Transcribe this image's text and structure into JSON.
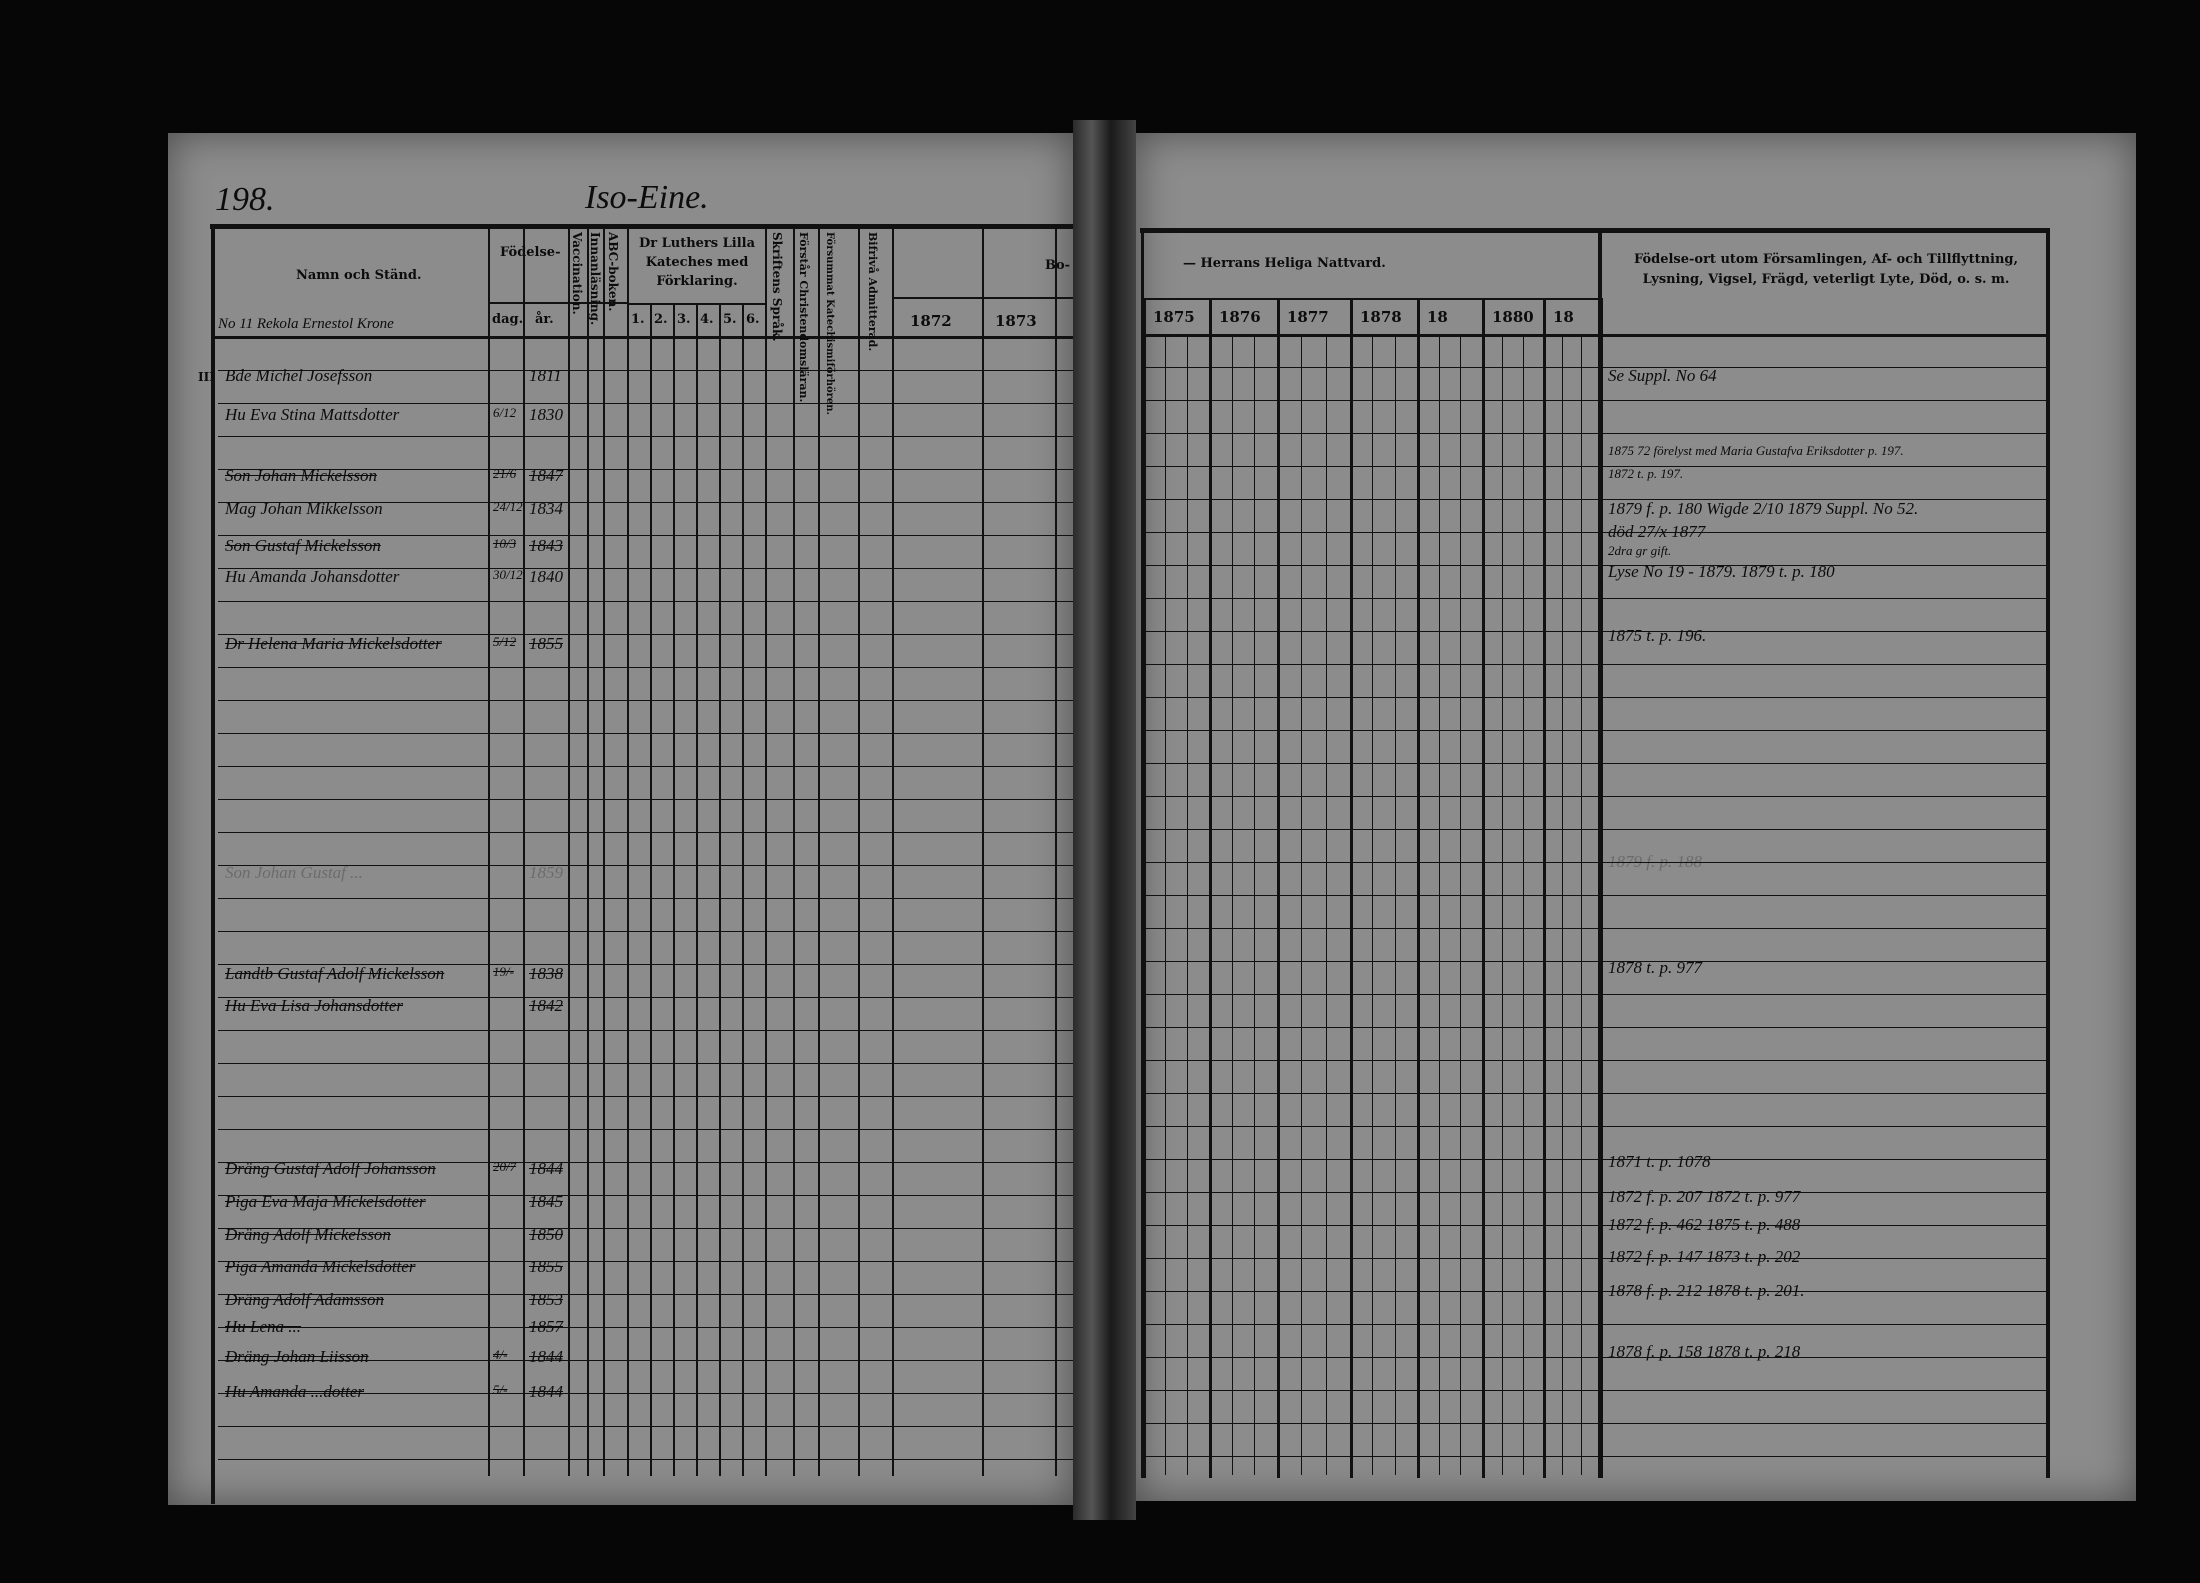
{
  "page_number": "198.",
  "village": "Iso-Eine.",
  "margin_mark": "III",
  "household_label": "No 11 Rekola Ernestol Krone",
  "left_headers": {
    "name": "Namn och Ständ.",
    "birth": "Födelse-",
    "day": "dag.",
    "year": "år.",
    "vaccination": "Vaccination.",
    "inskrifning": "Innanläsning.",
    "abc": "ABC-boken.",
    "catechism": "Dr Luthers Lilla Kateches med Förklaring.",
    "catechism_parts": [
      "1.",
      "2.",
      "3.",
      "4.",
      "5.",
      "6."
    ],
    "scripture": "Skriftens Språk.",
    "understands": "Förstår Christendomsläran.",
    "neglected": "Försummat Katechismiförhören.",
    "admitted": "Bifrivå Admitterad.",
    "years": [
      "1872",
      "1873"
    ],
    "partial": "Bo-"
  },
  "right_headers": {
    "communion": "— Herrans Heliga Nattvard.",
    "years": [
      "1875",
      "1876",
      "1877",
      "1878",
      "18",
      "1880",
      "18"
    ],
    "remarks": "Födelse-ort utom Församlingen, Af- och Tillflyttning, Lysning, Vigsel, Frägd, veterligt Lyte, Död, o. s. m."
  },
  "entries": [
    {
      "name": "Bde Michel Josefsson",
      "day": "",
      "year": "1811",
      "struck": false
    },
    {
      "name": "Hu Eva Stina Mattsdotter",
      "day": "6/12",
      "year": "1830",
      "struck": false
    },
    {
      "name": "Son Johan Mickelsson",
      "day": "21/6",
      "year": "1847",
      "struck": true
    },
    {
      "name": "Mag Johan Mikkelsson",
      "day": "24/12",
      "year": "1834",
      "struck": false
    },
    {
      "name": "Son Gustaf Mickelsson",
      "day": "10/3",
      "year": "1843",
      "struck": true
    },
    {
      "name": "Hu Amanda Johansdotter",
      "day": "30/12",
      "year": "1840",
      "struck": false
    },
    {
      "name": "Dr Helena Maria Mickelsdotter",
      "day": "5/12",
      "year": "1855",
      "struck": true
    },
    {
      "name": "Son Johan Gustaf ...",
      "day": "",
      "year": "1859",
      "struck": false,
      "faint": true
    },
    {
      "name": "Landtb Gustaf Adolf Mickelsson",
      "day": "19/-",
      "year": "1838",
      "struck": true
    },
    {
      "name": "Hu Eva Lisa Johansdotter",
      "day": "",
      "year": "1842",
      "struck": true
    },
    {
      "name": "Dräng Gustaf Adolf Johansson",
      "day": "20/7",
      "year": "1844",
      "struck": true
    },
    {
      "name": "Piga Eva Maja Mickelsdotter",
      "day": "",
      "year": "1845",
      "struck": true
    },
    {
      "name": "Dräng Adolf Mickelsson",
      "day": "",
      "year": "1850",
      "struck": true
    },
    {
      "name": "Piga Amanda Mickelsdotter",
      "day": "",
      "year": "1855",
      "struck": true
    },
    {
      "name": "Dräng Adolf Adamsson",
      "day": "",
      "year": "1853",
      "struck": true
    },
    {
      "name": "Hu Lena ...",
      "day": "",
      "year": "1857",
      "struck": true
    },
    {
      "name": "Dräng Johan Liisson",
      "day": "4/-",
      "year": "1844",
      "struck": true
    },
    {
      "name": "Hu Amanda ...dotter",
      "day": "5/-",
      "year": "1844",
      "struck": true
    }
  ],
  "remarks": [
    {
      "text": "Se Suppl. No 64",
      "struck": false
    },
    {
      "text": "1875 72 förelyst med Maria Gustafva Eriksdotter p. 197.",
      "struck": false
    },
    {
      "text": "1872 t. p. 197.",
      "struck": false
    },
    {
      "text": "1879 f. p. 180 Wigde 2/10 1879   Suppl. No 52.",
      "struck": false
    },
    {
      "text": "död 27/x 1877",
      "struck": false
    },
    {
      "text": "2dra gr gift.",
      "struck": false
    },
    {
      "text": "Lyse No 19 - 1879. 1879 t. p. 180",
      "struck": false
    },
    {
      "text": "1875 t. p. 196.",
      "struck": false
    },
    {
      "text": "1879 f. p. 188",
      "struck": false,
      "faint": true
    },
    {
      "text": "1878 t. p. 977",
      "struck": false
    },
    {
      "text": "1871 t. p. 1078",
      "struck": false
    },
    {
      "text": "1872 f. p. 207  1872 t. p. 977",
      "struck": false
    },
    {
      "text": "1872 f. p. 462  1875 t. p. 488",
      "struck": false
    },
    {
      "text": "1872 f. p. 147  1873 t. p. 202",
      "struck": false
    },
    {
      "text": "1878 f. p. 212  1878 t. p. 201.",
      "struck": false
    },
    {
      "text": "1878 f. p. 158  1878 t. p. 218",
      "struck": false
    }
  ]
}
